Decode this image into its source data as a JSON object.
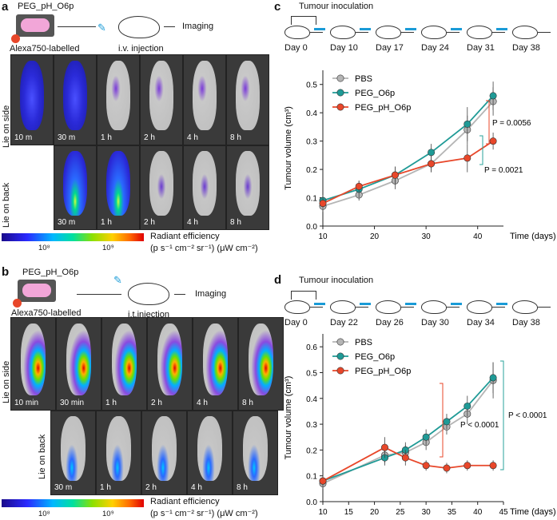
{
  "panel_a": {
    "letter": "a",
    "construct": "PEG_pH_O6p",
    "label": "Alexa750-labelled",
    "injection": "i.v. injection",
    "imaging": "Imaging",
    "side_label": "Lie on side",
    "back_label": "Lie on back",
    "side_times": [
      "10 m",
      "30 m",
      "1 h",
      "2 h",
      "4 h",
      "8 h"
    ],
    "back_times": [
      "30 m",
      "1 h",
      "2 h",
      "4 h",
      "8 h"
    ],
    "colorbar": {
      "tick1": "10⁸",
      "tick2": "10⁹",
      "title": "Radiant efficiency",
      "units": "(p s⁻¹ cm⁻² sr⁻¹) (μW cm⁻²)"
    }
  },
  "panel_b": {
    "letter": "b",
    "construct": "PEG_pH_O6p",
    "label": "Alexa750-labelled",
    "injection": "i.t.injection",
    "imaging": "Imaging",
    "side_label": "Lie on side",
    "back_label": "Lie on back",
    "side_times": [
      "10 min",
      "30 min",
      "1 h",
      "2 h",
      "4 h",
      "8 h"
    ],
    "back_times": [
      "30 m",
      "1 h",
      "2 h",
      "4 h",
      "8 h"
    ],
    "colorbar": {
      "tick1": "10⁸",
      "tick2": "10⁹",
      "title": "Radiant efficiency",
      "units": "(p s⁻¹ cm⁻² sr⁻¹) (μW cm⁻²)"
    }
  },
  "panel_c": {
    "letter": "c",
    "inoculation": "Tumour inoculation",
    "days": [
      "Day 0",
      "Day 10",
      "Day 17",
      "Day 24",
      "Day 31",
      "Day 38"
    ]
  },
  "panel_d": {
    "letter": "d",
    "inoculation": "Tumour inoculation",
    "days": [
      "Day 0",
      "Day 22",
      "Day 26",
      "Day 30",
      "Day 34",
      "Day 38"
    ]
  },
  "colors": {
    "pbs": "#b5b5b5",
    "peg_o6p": "#1f9a96",
    "peg_ph": "#e8472a",
    "accent_green": "#2aa39b",
    "accent_red": "#e8472a"
  },
  "chart_data": [
    {
      "id": "c",
      "type": "line",
      "xlabel": "Time (days)",
      "ylabel": "Tumour volume (cm³)",
      "xticks": [
        10,
        20,
        30,
        40
      ],
      "yticks": [
        0.0,
        0.1,
        0.2,
        0.3,
        0.4,
        0.5
      ],
      "xlim": [
        10,
        45
      ],
      "ylim": [
        0,
        0.55
      ],
      "legend": [
        "PBS",
        "PEG_O6p",
        "PEG_pH_O6p"
      ],
      "series": [
        {
          "name": "PBS",
          "x": [
            10,
            17,
            24,
            31,
            38,
            43
          ],
          "values": [
            0.07,
            0.11,
            0.16,
            0.22,
            0.34,
            0.44
          ],
          "error": [
            0.02,
            0.02,
            0.03,
            0.03,
            0.05,
            0.05
          ]
        },
        {
          "name": "PEG_O6p",
          "x": [
            10,
            17,
            24,
            31,
            38,
            43
          ],
          "values": [
            0.09,
            0.13,
            0.18,
            0.26,
            0.36,
            0.46
          ],
          "error": [
            0.02,
            0.03,
            0.03,
            0.03,
            0.06,
            0.05
          ]
        },
        {
          "name": "PEG_pH_O6p",
          "x": [
            10,
            17,
            24,
            31,
            38,
            43
          ],
          "values": [
            0.08,
            0.14,
            0.18,
            0.22,
            0.24,
            0.3
          ],
          "error": [
            0.02,
            0.02,
            0.03,
            0.03,
            0.05,
            0.03
          ]
        }
      ],
      "annotations": [
        "P = 0.0056",
        "P = 0.0021"
      ]
    },
    {
      "id": "d",
      "type": "line",
      "xlabel": "Time (days)",
      "ylabel": "Tumour volume (cm³)",
      "xticks": [
        10,
        15,
        20,
        25,
        30,
        35,
        40,
        45
      ],
      "yticks": [
        0.0,
        0.1,
        0.2,
        0.3,
        0.4,
        0.5,
        0.6
      ],
      "xlim": [
        10,
        45
      ],
      "ylim": [
        0,
        0.65
      ],
      "legend": [
        "PBS",
        "PEG_O6p",
        "PEG_pH_O6p"
      ],
      "series": [
        {
          "name": "PBS",
          "x": [
            10,
            22,
            26,
            30,
            34,
            38,
            43
          ],
          "values": [
            0.07,
            0.18,
            0.19,
            0.23,
            0.29,
            0.34,
            0.47
          ],
          "error": [
            0.02,
            0.03,
            0.03,
            0.03,
            0.03,
            0.04,
            0.07
          ]
        },
        {
          "name": "PEG_O6p",
          "x": [
            10,
            22,
            26,
            30,
            34,
            38,
            43
          ],
          "values": [
            0.08,
            0.17,
            0.2,
            0.25,
            0.31,
            0.37,
            0.48
          ],
          "error": [
            0.02,
            0.03,
            0.03,
            0.03,
            0.03,
            0.04,
            0.06
          ]
        },
        {
          "name": "PEG_pH_O6p",
          "x": [
            10,
            22,
            26,
            30,
            34,
            38,
            43
          ],
          "values": [
            0.08,
            0.21,
            0.17,
            0.14,
            0.13,
            0.14,
            0.14
          ],
          "error": [
            0.02,
            0.04,
            0.03,
            0.02,
            0.02,
            0.02,
            0.02
          ]
        }
      ],
      "annotations": [
        "P < 0.0001",
        "P < 0.0001"
      ]
    }
  ]
}
